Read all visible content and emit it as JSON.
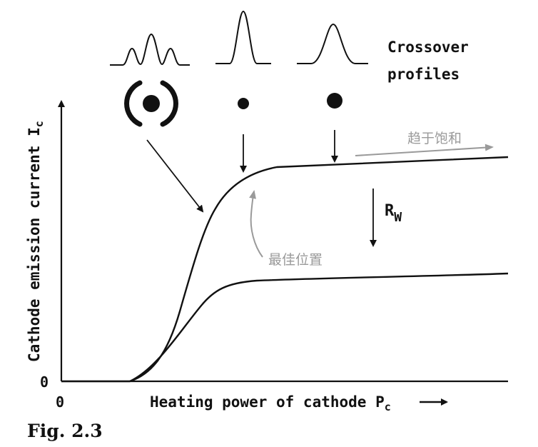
{
  "figure": {
    "caption": "Fig. 2.3",
    "colors": {
      "ink": "#111111",
      "annotation": "#9a9a9a"
    }
  },
  "axes": {
    "x_label": "Heating power of cathode",
    "x_symbol": "P",
    "x_subscript": "c",
    "y_label": "Cathode emission current",
    "y_symbol": "I",
    "y_subscript": "c",
    "x_origin": "0",
    "y_origin": "0"
  },
  "profiles": {
    "title_line1": "Crossover",
    "title_line2": "profiles"
  },
  "annotations": {
    "resistance_symbol": "R",
    "resistance_subscript": "W",
    "saturation_note": "趋于饱和",
    "optimal_note": "最佳位置"
  }
}
